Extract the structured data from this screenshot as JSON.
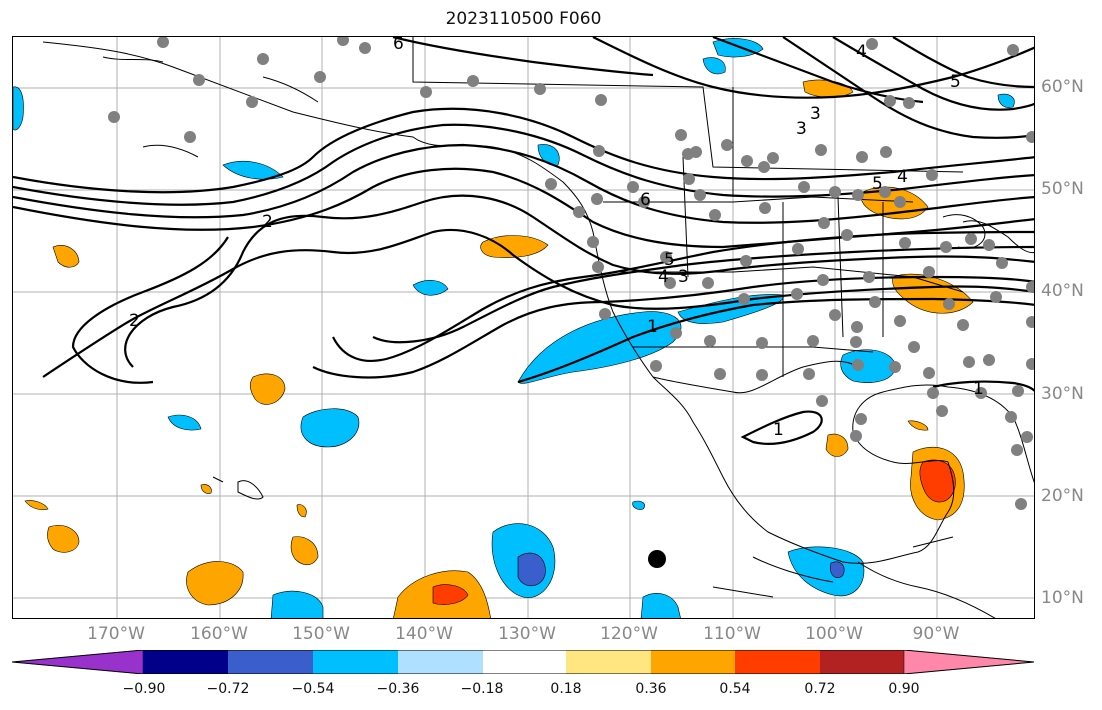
{
  "title": "2023110500 F060",
  "lat_labels": [
    "60°N",
    "50°N",
    "40°N",
    "30°N",
    "20°N",
    "10°N"
  ],
  "lon_labels": [
    "170°W",
    "160°W",
    "150°W",
    "140°W",
    "130°W",
    "120°W",
    "110°W",
    "100°W",
    "90°W"
  ],
  "contour_labels": [
    "2",
    "2",
    "3",
    "4",
    "5",
    "6",
    "1",
    "1",
    "3",
    "4",
    "5",
    "3",
    "4",
    "5",
    "6",
    "1"
  ],
  "colorbar": {
    "ticks": [
      "−0.90",
      "−0.72",
      "−0.54",
      "−0.36",
      "−0.18",
      "0.18",
      "0.36",
      "0.54",
      "0.72",
      "0.90"
    ],
    "colors": [
      "#9932cc",
      "#00008b",
      "#3a5fcd",
      "#00bfff",
      "#b0e0ff",
      "#ffffff",
      "#ffe680",
      "#ffa500",
      "#ff3d00",
      "#b22222",
      "#ff88aa"
    ]
  },
  "colors": {
    "negative": "#00bfff",
    "negative_strong": "#3a5fcd",
    "positive": "#ffa500",
    "positive_strong": "#ff3d00",
    "station": "#808080"
  }
}
